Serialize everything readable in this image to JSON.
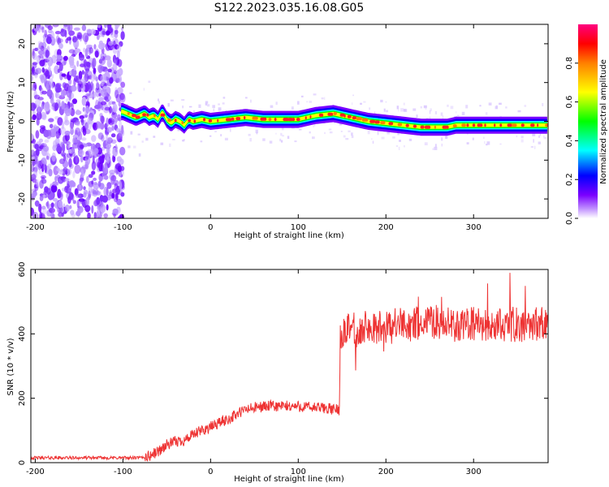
{
  "figure_title": "S122.2023.035.16.08.G05",
  "chart_data": [
    {
      "type": "heatmap",
      "xlabel": "Height of straight line (km)",
      "ylabel": "Frequency (Hz)",
      "xlim": [
        -205,
        385
      ],
      "ylim": [
        -25,
        25
      ],
      "xticks": [
        -200,
        -100,
        0,
        100,
        200,
        300
      ],
      "yticks": [
        -20,
        -10,
        0,
        10,
        20
      ],
      "grid": false,
      "ridge": {
        "x": [
          -100,
          -95,
          -90,
          -85,
          -80,
          -75,
          -70,
          -65,
          -60,
          -55,
          -50,
          -45,
          -40,
          -35,
          -30,
          -25,
          -20,
          -10,
          0,
          20,
          40,
          60,
          80,
          100,
          110,
          120,
          140,
          150,
          160,
          180,
          200,
          220,
          240,
          260,
          270,
          280,
          300,
          320,
          340,
          360,
          385
        ],
        "frequency": [
          2.5,
          2.0,
          1.5,
          1.0,
          1.5,
          2.0,
          1.0,
          1.5,
          0.5,
          2.5,
          0.5,
          -0.5,
          0.5,
          0.0,
          -1.0,
          0.5,
          0.0,
          0.5,
          0.0,
          0.5,
          1.0,
          0.5,
          0.5,
          0.5,
          1.0,
          1.5,
          2.0,
          1.5,
          1.0,
          0.0,
          -0.5,
          -1.0,
          -1.5,
          -1.5,
          -1.5,
          -1.0,
          -1.0,
          -1.0,
          -1.0,
          -1.0,
          -1.0
        ]
      },
      "colorbar": {
        "label": "Normalized spectral amplitude",
        "range": [
          0.0,
          1.0
        ],
        "ticks": [
          0.0,
          0.2,
          0.4,
          0.6,
          0.8
        ],
        "tick_labels": [
          "0.0",
          "0.2",
          "0.4",
          "0.6",
          "0.8"
        ],
        "colors": [
          "#ffffff",
          "#b070ff",
          "#6a00ff",
          "#0000ff",
          "#00ffff",
          "#00ff00",
          "#ffff00",
          "#ff8000",
          "#ff0000",
          "#ff0080"
        ]
      }
    },
    {
      "type": "line",
      "xlabel": "Height of straight line (km)",
      "ylabel": "SNR (10 * v/v)",
      "xlim": [
        -205,
        385
      ],
      "ylim": [
        0,
        600
      ],
      "xticks": [
        -200,
        -100,
        0,
        100,
        200,
        300
      ],
      "yticks": [
        0,
        200,
        400,
        600
      ],
      "grid": false,
      "color": "#ee3333",
      "profile": {
        "x": [
          -205,
          -80,
          -70,
          -60,
          -50,
          -40,
          -30,
          -20,
          -10,
          0,
          10,
          20,
          30,
          40,
          60,
          80,
          100,
          120,
          130,
          140,
          147,
          148,
          150,
          160,
          180,
          200,
          220,
          240,
          260,
          280,
          300,
          320,
          340,
          360,
          385
        ],
        "snr": [
          15,
          15,
          20,
          35,
          55,
          65,
          70,
          85,
          100,
          110,
          125,
          135,
          150,
          165,
          175,
          175,
          175,
          170,
          170,
          165,
          165,
          415,
          400,
          410,
          420,
          420,
          430,
          430,
          440,
          420,
          430,
          425,
          430,
          430,
          430
        ]
      },
      "noise_amplitude": [
        {
          "x_from": -205,
          "x_to": -75,
          "amp": 5
        },
        {
          "x_from": -75,
          "x_to": 148,
          "amp": 18
        },
        {
          "x_from": 148,
          "x_to": 385,
          "amp": 55
        }
      ]
    }
  ]
}
